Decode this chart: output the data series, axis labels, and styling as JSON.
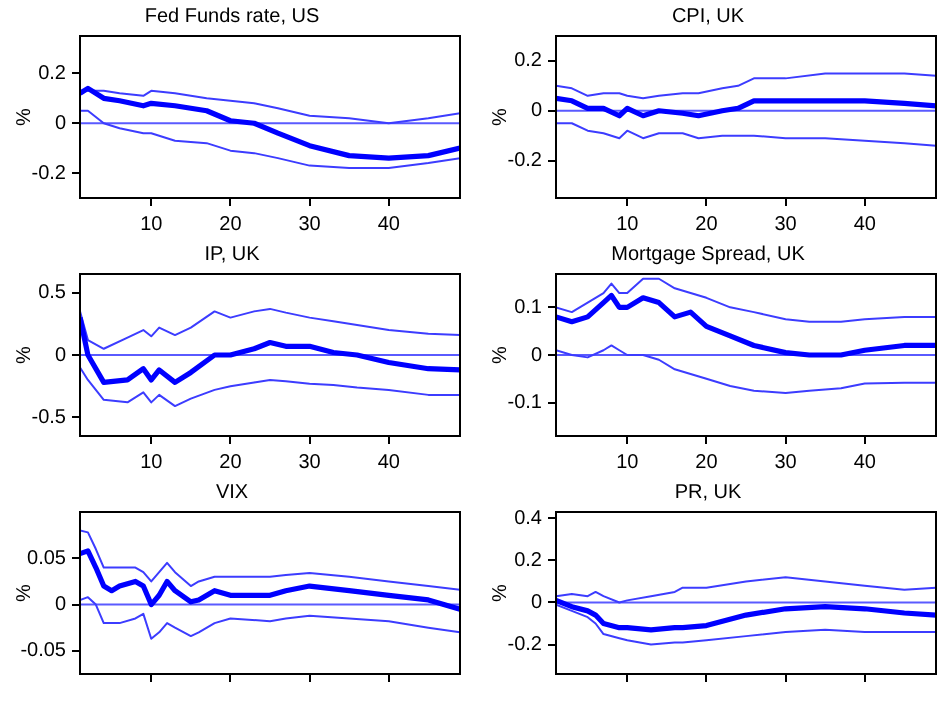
{
  "chart_data": [
    {
      "type": "line",
      "title": "Fed Funds rate, US",
      "ylabel": "%",
      "x": [
        1,
        2,
        4,
        6,
        9,
        10,
        13,
        17,
        20,
        23,
        26,
        30,
        35,
        40,
        45,
        49
      ],
      "xlim": [
        1,
        49
      ],
      "xticks": [
        10,
        20,
        30,
        40
      ],
      "ylim": [
        -0.3,
        0.35
      ],
      "yticks": [
        -0.2,
        0,
        0.2
      ],
      "grid": false,
      "legend": false,
      "marker": "none",
      "line_style": "solid",
      "ref_lines": [
        {
          "axis": "y",
          "value": 0,
          "color": "#5a5aff"
        }
      ],
      "series": [
        {
          "color": "#0000ff",
          "values": [
            0.12,
            0.14,
            0.1,
            0.09,
            0.07,
            0.08,
            0.07,
            0.05,
            0.01,
            0.0,
            -0.04,
            -0.09,
            -0.13,
            -0.14,
            -0.13,
            -0.1
          ]
        },
        {
          "color": "#3c3cff",
          "values": [
            0.13,
            0.13,
            0.13,
            0.12,
            0.11,
            0.13,
            0.12,
            0.1,
            0.09,
            0.08,
            0.06,
            0.03,
            0.02,
            0.0,
            0.02,
            0.04
          ]
        },
        {
          "color": "#3c3cff",
          "values": [
            0.05,
            0.05,
            0.0,
            -0.02,
            -0.04,
            -0.04,
            -0.07,
            -0.08,
            -0.11,
            -0.12,
            -0.14,
            -0.17,
            -0.18,
            -0.18,
            -0.16,
            -0.14
          ]
        }
      ]
    },
    {
      "type": "line",
      "title": "CPI, UK",
      "ylabel": "%",
      "x": [
        1,
        3,
        5,
        7,
        9,
        10,
        12,
        14,
        17,
        19,
        22,
        24,
        26,
        30,
        35,
        40,
        45,
        49
      ],
      "xlim": [
        1,
        49
      ],
      "xticks": [
        10,
        20,
        30,
        40
      ],
      "ylim": [
        -0.35,
        0.3
      ],
      "yticks": [
        -0.2,
        0,
        0.2
      ],
      "grid": false,
      "legend": false,
      "marker": "none",
      "line_style": "solid",
      "ref_lines": [
        {
          "axis": "y",
          "value": 0,
          "color": "#5a5aff"
        }
      ],
      "series": [
        {
          "color": "#0000ff",
          "values": [
            0.05,
            0.04,
            0.01,
            0.01,
            -0.02,
            0.01,
            -0.02,
            0.0,
            -0.01,
            -0.02,
            0.0,
            0.01,
            0.04,
            0.04,
            0.04,
            0.04,
            0.03,
            0.02
          ]
        },
        {
          "color": "#3c3cff",
          "values": [
            0.1,
            0.09,
            0.06,
            0.07,
            0.07,
            0.06,
            0.05,
            0.06,
            0.07,
            0.07,
            0.09,
            0.1,
            0.13,
            0.13,
            0.15,
            0.15,
            0.15,
            0.14
          ]
        },
        {
          "color": "#3c3cff",
          "values": [
            -0.05,
            -0.05,
            -0.08,
            -0.09,
            -0.11,
            -0.08,
            -0.11,
            -0.09,
            -0.09,
            -0.11,
            -0.1,
            -0.1,
            -0.1,
            -0.11,
            -0.11,
            -0.12,
            -0.13,
            -0.14
          ]
        }
      ]
    },
    {
      "type": "line",
      "title": "IP, UK",
      "ylabel": "%",
      "x": [
        1,
        2,
        4,
        7,
        9,
        10,
        11,
        13,
        15,
        18,
        20,
        23,
        25,
        27,
        30,
        33,
        36,
        40,
        45,
        49
      ],
      "xlim": [
        1,
        49
      ],
      "xticks": [
        10,
        20,
        30,
        40
      ],
      "ylim": [
        -0.65,
        0.65
      ],
      "yticks": [
        -0.5,
        0,
        0.5
      ],
      "grid": false,
      "legend": false,
      "marker": "none",
      "line_style": "solid",
      "ref_lines": [
        {
          "axis": "y",
          "value": 0,
          "color": "#5a5aff"
        }
      ],
      "series": [
        {
          "color": "#0000ff",
          "values": [
            0.3,
            0.0,
            -0.22,
            -0.2,
            -0.11,
            -0.2,
            -0.12,
            -0.22,
            -0.14,
            0.0,
            0.0,
            0.05,
            0.1,
            0.07,
            0.07,
            0.02,
            0.0,
            -0.06,
            -0.11,
            -0.12
          ]
        },
        {
          "color": "#3c3cff",
          "values": [
            0.35,
            0.12,
            0.05,
            0.14,
            0.2,
            0.15,
            0.22,
            0.16,
            0.22,
            0.35,
            0.3,
            0.35,
            0.37,
            0.34,
            0.3,
            0.27,
            0.24,
            0.2,
            0.17,
            0.16
          ]
        },
        {
          "color": "#3c3cff",
          "values": [
            -0.1,
            -0.2,
            -0.36,
            -0.38,
            -0.3,
            -0.38,
            -0.32,
            -0.41,
            -0.35,
            -0.28,
            -0.25,
            -0.22,
            -0.2,
            -0.21,
            -0.23,
            -0.24,
            -0.26,
            -0.28,
            -0.32,
            -0.32
          ]
        }
      ]
    },
    {
      "type": "line",
      "title": "Mortgage Spread, UK",
      "ylabel": "%",
      "x": [
        1,
        3,
        5,
        7,
        8,
        9,
        10,
        12,
        14,
        16,
        18,
        20,
        23,
        26,
        30,
        33,
        37,
        40,
        45,
        49
      ],
      "xlim": [
        1,
        49
      ],
      "xticks": [
        10,
        20,
        30,
        40
      ],
      "ylim": [
        -0.17,
        0.17
      ],
      "yticks": [
        -0.1,
        0,
        0.1
      ],
      "grid": false,
      "legend": false,
      "marker": "none",
      "line_style": "solid",
      "ref_lines": [
        {
          "axis": "y",
          "value": 0,
          "color": "#5a5aff"
        }
      ],
      "series": [
        {
          "color": "#0000ff",
          "values": [
            0.08,
            0.07,
            0.08,
            0.11,
            0.125,
            0.1,
            0.1,
            0.12,
            0.11,
            0.08,
            0.09,
            0.06,
            0.04,
            0.02,
            0.005,
            0.0,
            0.0,
            0.01,
            0.02,
            0.02
          ]
        },
        {
          "color": "#3c3cff",
          "values": [
            0.1,
            0.09,
            0.11,
            0.13,
            0.15,
            0.13,
            0.13,
            0.16,
            0.16,
            0.14,
            0.13,
            0.12,
            0.1,
            0.09,
            0.075,
            0.07,
            0.07,
            0.075,
            0.08,
            0.08
          ]
        },
        {
          "color": "#3c3cff",
          "values": [
            0.01,
            0.0,
            -0.005,
            0.01,
            0.02,
            0.01,
            0.0,
            0.0,
            -0.01,
            -0.03,
            -0.04,
            -0.05,
            -0.065,
            -0.075,
            -0.08,
            -0.075,
            -0.07,
            -0.06,
            -0.058,
            -0.058
          ]
        }
      ]
    },
    {
      "type": "line",
      "title": "VIX",
      "ylabel": "%",
      "x": [
        1,
        2,
        3,
        4,
        5,
        6,
        8,
        9,
        10,
        11,
        12,
        13,
        15,
        16,
        18,
        20,
        25,
        27,
        30,
        35,
        40,
        45,
        49
      ],
      "xlim": [
        1,
        49
      ],
      "xticks": [
        10,
        20,
        30,
        40
      ],
      "ylim": [
        -0.075,
        0.1
      ],
      "yticks": [
        -0.05,
        0,
        0.05
      ],
      "grid": false,
      "legend": false,
      "marker": "none",
      "line_style": "solid",
      "tick_labels": "y",
      "ref_lines": [
        {
          "axis": "y",
          "value": 0,
          "color": "#5a5aff"
        }
      ],
      "series": [
        {
          "color": "#0000ff",
          "values": [
            0.055,
            0.058,
            0.04,
            0.02,
            0.015,
            0.02,
            0.025,
            0.02,
            0.0,
            0.01,
            0.025,
            0.015,
            0.003,
            0.005,
            0.015,
            0.01,
            0.01,
            0.015,
            0.02,
            0.015,
            0.01,
            0.005,
            -0.005
          ]
        },
        {
          "color": "#3c3cff",
          "values": [
            0.08,
            0.078,
            0.06,
            0.04,
            0.04,
            0.04,
            0.04,
            0.035,
            0.025,
            0.035,
            0.045,
            0.035,
            0.02,
            0.025,
            0.03,
            0.03,
            0.03,
            0.032,
            0.034,
            0.03,
            0.025,
            0.02,
            0.016
          ]
        },
        {
          "color": "#3c3cff",
          "values": [
            0.005,
            0.008,
            0.0,
            -0.02,
            -0.02,
            -0.02,
            -0.015,
            -0.01,
            -0.037,
            -0.03,
            -0.02,
            -0.025,
            -0.034,
            -0.03,
            -0.02,
            -0.015,
            -0.018,
            -0.015,
            -0.012,
            -0.015,
            -0.018,
            -0.025,
            -0.03
          ]
        }
      ]
    },
    {
      "type": "line",
      "title": "PR, UK",
      "ylabel": "%",
      "x": [
        1,
        3,
        5,
        6,
        7,
        9,
        10,
        13,
        16,
        17,
        20,
        25,
        30,
        35,
        40,
        45,
        49
      ],
      "xlim": [
        1,
        49
      ],
      "xticks": [
        10,
        20,
        30,
        40
      ],
      "ylim": [
        -0.34,
        0.43
      ],
      "yticks": [
        -0.2,
        0,
        0.2,
        0.4
      ],
      "grid": false,
      "legend": false,
      "marker": "none",
      "line_style": "solid",
      "tick_labels": "y",
      "ref_lines": [
        {
          "axis": "y",
          "value": 0,
          "color": "#5a5aff"
        }
      ],
      "series": [
        {
          "color": "#0000ff",
          "values": [
            0.01,
            -0.02,
            -0.04,
            -0.06,
            -0.1,
            -0.12,
            -0.12,
            -0.13,
            -0.12,
            -0.12,
            -0.11,
            -0.06,
            -0.03,
            -0.02,
            -0.03,
            -0.05,
            -0.06
          ]
        },
        {
          "color": "#3c3cff",
          "values": [
            0.03,
            0.04,
            0.03,
            0.05,
            0.03,
            0.0,
            0.01,
            0.03,
            0.05,
            0.07,
            0.07,
            0.1,
            0.12,
            0.1,
            0.08,
            0.06,
            0.07
          ]
        },
        {
          "color": "#3c3cff",
          "values": [
            -0.01,
            -0.04,
            -0.07,
            -0.1,
            -0.15,
            -0.17,
            -0.18,
            -0.2,
            -0.19,
            -0.19,
            -0.18,
            -0.16,
            -0.14,
            -0.13,
            -0.14,
            -0.14,
            -0.14
          ]
        }
      ]
    }
  ]
}
